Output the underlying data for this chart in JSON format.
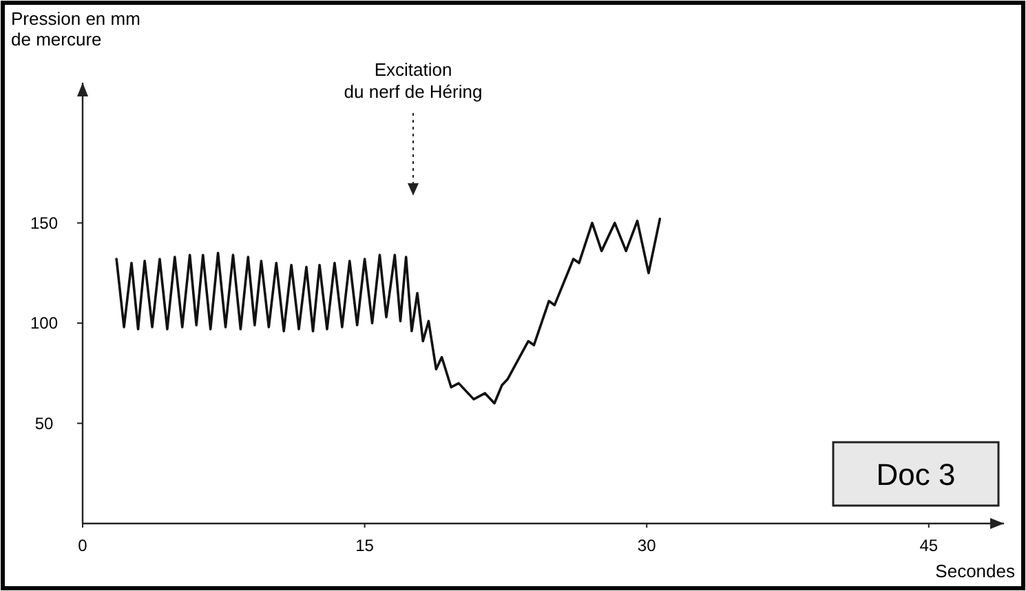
{
  "chart_data": {
    "type": "line",
    "ylabel": "Pression en mm\nde mercure",
    "xlabel": "Secondes",
    "x": [
      1.8,
      2.2,
      2.6,
      2.95,
      3.3,
      3.7,
      4.1,
      4.5,
      4.9,
      5.3,
      5.7,
      6.05,
      6.4,
      6.8,
      7.2,
      7.6,
      8.0,
      8.4,
      8.8,
      9.15,
      9.5,
      9.9,
      10.3,
      10.7,
      11.1,
      11.5,
      11.9,
      12.25,
      12.6,
      13.0,
      13.4,
      13.8,
      14.2,
      14.6,
      15.0,
      15.4,
      15.8,
      16.15,
      16.6,
      16.9,
      17.2,
      17.5,
      17.8,
      18.1,
      18.4,
      18.8,
      19.1,
      19.6,
      20.0,
      20.8,
      21.4,
      21.9,
      22.3,
      22.6,
      23.7,
      24.0,
      24.8,
      25.1,
      26.1,
      26.4,
      27.1,
      27.6,
      28.3,
      28.9,
      29.5,
      30.1,
      30.7
    ],
    "series": [
      {
        "color": "#111111",
        "values": [
          132,
          98,
          130,
          97,
          131,
          98,
          132,
          97,
          133,
          98,
          134,
          99,
          134,
          97,
          135,
          98,
          134,
          97,
          133,
          99,
          131,
          98,
          130,
          96,
          129,
          97,
          128,
          96,
          129,
          97,
          130,
          98,
          131,
          99,
          132,
          100,
          134,
          103,
          134,
          101,
          133,
          96,
          115,
          91,
          101,
          77,
          83,
          68,
          70,
          62,
          65,
          60,
          69,
          72,
          91,
          89,
          111,
          109,
          132,
          130,
          150,
          136,
          150,
          136,
          151,
          125,
          152
        ]
      }
    ],
    "xlim": [
      0,
      49
    ],
    "ylim": [
      0,
      220
    ],
    "xticks": [
      0,
      15,
      30,
      45
    ],
    "yticks": [
      50,
      100,
      150
    ],
    "grid": false,
    "marker": "none",
    "line_style": "solid",
    "annotations": [
      "Excitation\ndu nerf de Héring",
      "Doc 3"
    ]
  }
}
